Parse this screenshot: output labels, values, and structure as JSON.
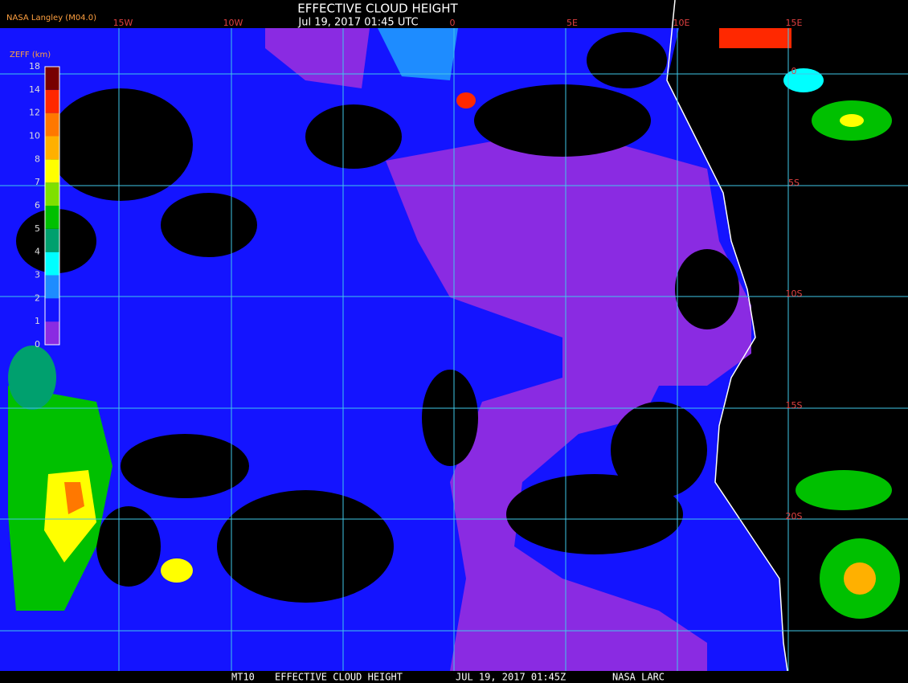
{
  "header": {
    "title": "EFFECTIVE CLOUD HEIGHT",
    "subtitle": "Jul 19, 2017 01:45 UTC",
    "source": "NASA Langley (M04.0)"
  },
  "legend": {
    "title": "ZEFF (km)",
    "labels": [
      0,
      1,
      2,
      3,
      4,
      5,
      6,
      7,
      8,
      10,
      12,
      14,
      18
    ],
    "colors": [
      "#8a2be2",
      "#1414ff",
      "#1e8cff",
      "#00ffff",
      "#00a06e",
      "#00c000",
      "#7fe000",
      "#ffff00",
      "#ffb000",
      "#ff7800",
      "#ff2800",
      "#780000"
    ]
  },
  "grid": {
    "longitudes": [
      "15W",
      "10W",
      "0",
      "5E",
      "10E",
      "15E"
    ],
    "latitudes": [
      "0",
      "5S",
      "10S",
      "15S",
      "20S"
    ]
  },
  "footer": {
    "id": "MT10",
    "product": "EFFECTIVE CLOUD HEIGHT",
    "time": "JUL 19, 2017 01:45Z",
    "org": "NASA LARC"
  }
}
